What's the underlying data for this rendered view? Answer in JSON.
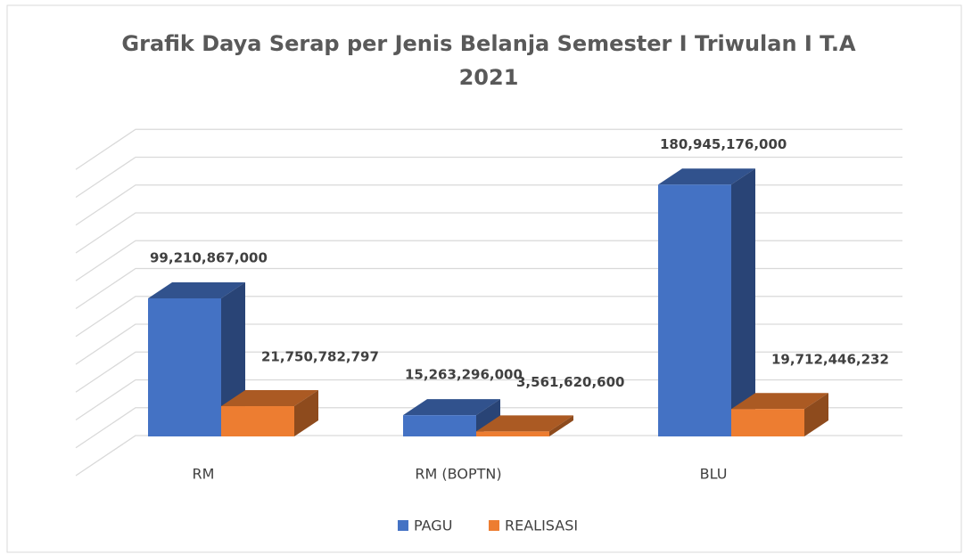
{
  "chart_data": {
    "type": "bar3d",
    "title": "Grafik Daya Serap per Jenis Belanja Semester I Triwulan I T.A 2021",
    "categories": [
      "RM",
      "RM (BOPTN)",
      "BLU"
    ],
    "series": [
      {
        "name": "PAGU",
        "color": "#4472c4",
        "values": [
          99210867000,
          15263296000,
          180945176000
        ],
        "value_labels": [
          "99,210,867,000",
          "15,263,296,000",
          "180,945,176,000"
        ]
      },
      {
        "name": "REALISASI",
        "color": "#ed7d31",
        "values": [
          21750782797,
          3561620600,
          19712446232
        ],
        "value_labels": [
          "21,750,782,797",
          "3,561,620,600",
          "19,712,446,232"
        ]
      }
    ],
    "ylim": [
      0,
      220000000000
    ],
    "yticks": [
      0,
      20000000000,
      40000000000,
      60000000000,
      80000000000,
      100000000000,
      120000000000,
      140000000000,
      160000000000,
      180000000000,
      200000000000,
      220000000000
    ],
    "grid": true,
    "legend": "bottom"
  }
}
